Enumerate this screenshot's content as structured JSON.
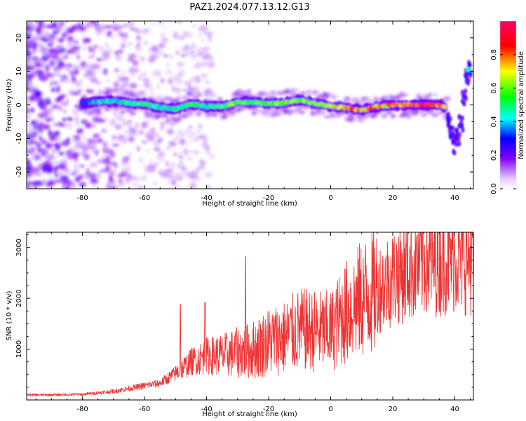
{
  "title": "PAZ1.2024.077.13.12.G13",
  "chart_data": [
    {
      "type": "heatmap",
      "xlabel": "Height of straight line (km)",
      "ylabel": "Frequency (Hz)",
      "xlim": [
        -98,
        46
      ],
      "ylim": [
        -25,
        25
      ],
      "xticks": [
        -80,
        -60,
        -40,
        -20,
        0,
        20,
        40
      ],
      "yticks": [
        -20,
        -10,
        0,
        10,
        20
      ],
      "colorbar": {
        "label": "Normalized spectral amplitude",
        "range": [
          0,
          1
        ],
        "ticks": [
          0.0,
          0.2,
          0.4,
          0.6,
          0.8
        ],
        "colormap": [
          "#ffffff",
          "#e6ccff",
          "#8000ff",
          "#0000ff",
          "#00ffff",
          "#00ff00",
          "#ffff00",
          "#ff0000",
          "#ff0066"
        ]
      },
      "ridge": {
        "x": [
          -80,
          -75,
          -70,
          -65,
          -60,
          -55,
          -50,
          -45,
          -40,
          -35,
          -30,
          -25,
          -20,
          -15,
          -10,
          -5,
          0,
          5,
          10,
          15,
          20,
          25,
          30,
          35,
          37
        ],
        "frequency": [
          0.5,
          1.0,
          1.2,
          0.5,
          0.3,
          -0.8,
          -1.2,
          0.3,
          -0.5,
          -0.5,
          0.8,
          0.8,
          0.3,
          0.6,
          1.5,
          0.5,
          -0.4,
          -0.8,
          -1.6,
          -0.5,
          0.0,
          0.0,
          0.0,
          0.0,
          -0.6
        ],
        "amplitude": [
          0.3,
          0.42,
          0.45,
          0.5,
          0.55,
          0.45,
          0.5,
          0.55,
          0.45,
          0.6,
          0.65,
          0.55,
          0.6,
          0.7,
          0.65,
          0.6,
          0.7,
          0.8,
          0.85,
          0.8,
          0.85,
          0.9,
          1.0,
          0.9,
          0.8
        ]
      },
      "edge_branch": {
        "x": [
          38,
          39,
          40,
          41,
          42,
          43,
          44,
          45
        ],
        "frequency": [
          -4,
          -9,
          -12,
          -10,
          -5,
          2,
          8,
          11
        ]
      }
    },
    {
      "type": "line",
      "xlabel": "Height of straight line (km)",
      "ylabel": "SNR (10 * v/v)",
      "xlim": [
        -98,
        46
      ],
      "ylim": [
        0,
        3300
      ],
      "xticks": [
        -80,
        -60,
        -40,
        -20,
        0,
        20,
        40
      ],
      "yticks": [
        1000,
        2000,
        3000
      ],
      "color": "#ee3333",
      "trend": {
        "x": [
          -98,
          -90,
          -80,
          -70,
          -60,
          -55,
          -50,
          -45,
          -40,
          -35,
          -30,
          -25,
          -20,
          -15,
          -10,
          -5,
          0,
          5,
          10,
          15,
          20,
          25,
          30,
          35,
          40,
          46
        ],
        "snr": [
          100,
          100,
          110,
          170,
          280,
          330,
          520,
          750,
          870,
          880,
          930,
          980,
          1150,
          1230,
          1380,
          1360,
          1350,
          1730,
          1980,
          2180,
          2420,
          2570,
          2700,
          2750,
          2820,
          2780
        ]
      },
      "spikes": [
        {
          "x": -48.5,
          "snr": 1880
        },
        {
          "x": -40.5,
          "snr": 1920
        },
        {
          "x": -27.5,
          "snr": 2820
        },
        {
          "x": 42,
          "snr": 3150
        }
      ]
    }
  ]
}
